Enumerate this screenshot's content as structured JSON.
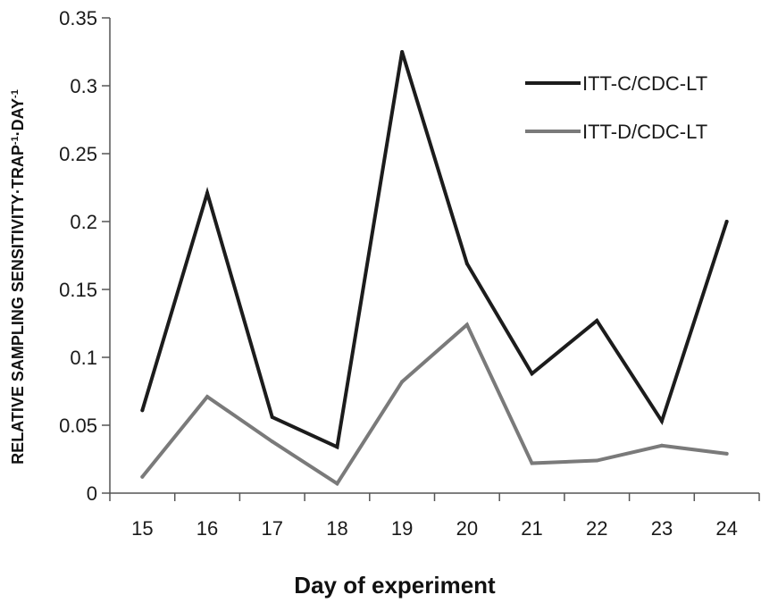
{
  "chart_data": {
    "type": "line",
    "x": [
      15,
      16,
      17,
      18,
      19,
      20,
      21,
      22,
      23,
      24
    ],
    "categories": [
      "15",
      "16",
      "17",
      "18",
      "19",
      "20",
      "21",
      "22",
      "23",
      "24"
    ],
    "xlabel": "Day of experiment",
    "ylabel": "RELATIVE SAMPLING SENSITIVITY·TRAP",
    "ylabel_parts": {
      "a": "RELATIVE SAMPLING SENSITIVITY·TRAP",
      "sup1": "-1",
      "b": "·DAY",
      "sup2": "-1"
    },
    "ylim": [
      0,
      0.35
    ],
    "yticks": [
      "0",
      "0.05",
      "0.1",
      "0.15",
      "0.2",
      "0.25",
      "0.3",
      "0.35"
    ],
    "ytick_values": [
      0,
      0.05,
      0.1,
      0.15,
      0.2,
      0.25,
      0.3,
      0.35
    ],
    "grid": false,
    "legend_position": "top-right",
    "series": [
      {
        "name": "ITT-C/CDC-LT",
        "color": "#1c1c1c",
        "values": [
          0.061,
          0.221,
          0.056,
          0.034,
          0.325,
          0.169,
          0.088,
          0.127,
          0.053,
          0.2
        ]
      },
      {
        "name": "ITT-D/CDC-LT",
        "color": "#7a7a7a",
        "values": [
          0.012,
          0.071,
          0.038,
          0.007,
          0.082,
          0.124,
          0.022,
          0.024,
          0.035,
          0.029
        ]
      }
    ]
  }
}
